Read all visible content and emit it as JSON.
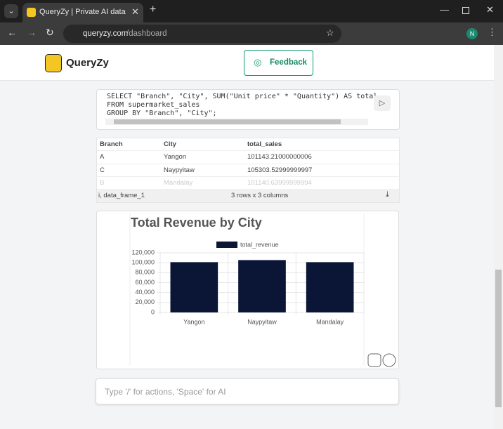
{
  "browser": {
    "tab_title": "QueryZy | Private AI data analys",
    "url_host": "queryzy.com",
    "url_path": "/dashboard",
    "profile": "N"
  },
  "header": {
    "brand": "QueryZy",
    "feedback": "Feedback"
  },
  "sql": {
    "lines": [
      "SELECT \"Branch\", \"City\", SUM(\"Unit price\" * \"Quantity\") AS total_",
      "FROM supermarket_sales",
      "GROUP BY \"Branch\", \"City\";"
    ]
  },
  "table": {
    "columns": [
      "Branch",
      "City",
      "total_sales"
    ],
    "rows": [
      [
        "A",
        "Yangon",
        "101143.21000000006"
      ],
      [
        "C",
        "Naypyitaw",
        "105303.52999999997"
      ],
      [
        "B",
        "Mandalay",
        "101140.63999999994"
      ]
    ],
    "footer_name": "i, data_frame_1",
    "footer_shape": "3 rows x 3 columns"
  },
  "chart": {
    "type": "bar",
    "title": "Total Revenue by City",
    "categories": [
      "Yangon",
      "Naypyitaw",
      "Mandalay"
    ],
    "series": [
      {
        "name": "total_revenue",
        "color": "#0b1637",
        "values": [
          101143.21,
          105303.53,
          101140.64
        ]
      }
    ],
    "ylim": [
      0,
      120000
    ],
    "yticks": [
      0,
      {
        "value": 20000,
        "label": "20,000"
      },
      {
        "value": 40000,
        "label": "40,000"
      },
      {
        "value": 60000,
        "label": "60,000"
      },
      {
        "value": 80000,
        "label": "80,000"
      },
      {
        "value": 100000,
        "label": "100,000"
      },
      {
        "value": 120000,
        "label": "120,000"
      }
    ],
    "grid": true
  },
  "input": {
    "placeholder": "Type '/' for actions, 'Space' for AI"
  }
}
